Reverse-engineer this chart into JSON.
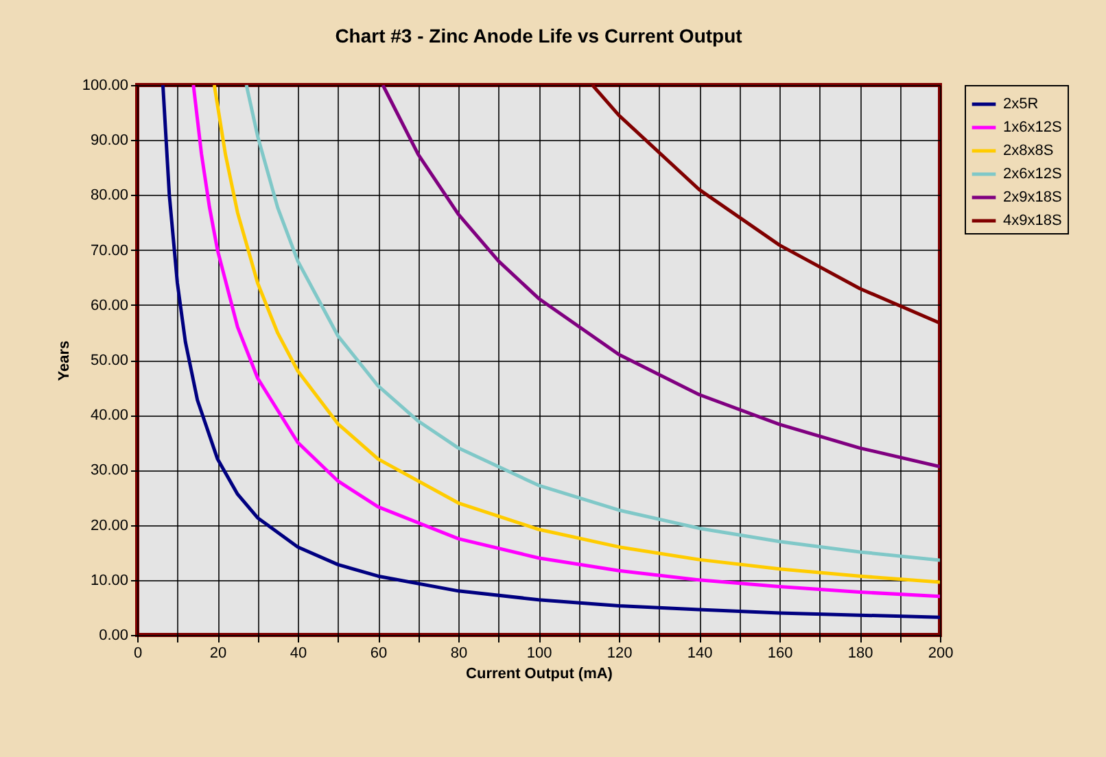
{
  "chart_data": {
    "type": "line",
    "title": "Chart #3 - Zinc Anode Life vs Current Output",
    "xlabel": "Current Output (mA)",
    "ylabel": "Years",
    "xlim": [
      0,
      200
    ],
    "ylim": [
      0,
      100
    ],
    "xticks": [
      0,
      {
        "value": 10,
        "label": null
      },
      20,
      {
        "value": 30,
        "label": null
      },
      40,
      {
        "value": 50,
        "label": null
      },
      60,
      {
        "value": 70,
        "label": null
      },
      80,
      {
        "value": 90,
        "label": null
      },
      100,
      {
        "value": 110,
        "label": null
      },
      120,
      {
        "value": 130,
        "label": null
      },
      140,
      {
        "value": 150,
        "label": null
      },
      160,
      {
        "value": 170,
        "label": null
      },
      180,
      {
        "value": 190,
        "label": null
      },
      200
    ],
    "yticks": [
      {
        "value": 0,
        "label": "0.00"
      },
      {
        "value": 10,
        "label": "10.00"
      },
      {
        "value": 20,
        "label": "20.00"
      },
      {
        "value": 30,
        "label": "30.00"
      },
      {
        "value": 40,
        "label": "40.00"
      },
      {
        "value": 50,
        "label": "50.00"
      },
      {
        "value": 60,
        "label": "60.00"
      },
      {
        "value": 70,
        "label": "70.00"
      },
      {
        "value": 80,
        "label": "80.00"
      },
      {
        "value": 90,
        "label": "90.00"
      },
      {
        "value": 100,
        "label": "100.00"
      }
    ],
    "grid": true,
    "legend": "right",
    "marker": "none",
    "line_style": "solid",
    "series": [
      {
        "name": "2x5R",
        "color": "#000080",
        "x": [
          6.4,
          8,
          10,
          12,
          15,
          20,
          25,
          30,
          40,
          50,
          60,
          80,
          100,
          120,
          140,
          160,
          180,
          200
        ],
        "values": [
          100,
          80,
          64,
          53.3,
          42.7,
          32,
          25.6,
          21.3,
          16,
          12.8,
          10.7,
          8,
          6.4,
          5.3,
          4.6,
          4,
          3.6,
          3.2
        ]
      },
      {
        "name": "1x6x12S",
        "color": "#ff00ff",
        "x": [
          14,
          16,
          18,
          20,
          25,
          30,
          40,
          50,
          60,
          80,
          100,
          120,
          140,
          160,
          180,
          200
        ],
        "values": [
          100,
          87.5,
          77.8,
          70,
          56,
          46.7,
          35,
          28,
          23.3,
          17.5,
          14,
          11.7,
          10,
          8.8,
          7.8,
          7
        ]
      },
      {
        "name": "2x8x8S",
        "color": "#ffcc00",
        "x": [
          19.2,
          22,
          25,
          30,
          35,
          40,
          50,
          60,
          80,
          100,
          120,
          140,
          160,
          180,
          200
        ],
        "values": [
          100,
          87.3,
          76.8,
          64,
          54.9,
          48,
          38.4,
          32,
          24,
          19.2,
          16,
          13.7,
          12,
          10.7,
          9.6
        ]
      },
      {
        "name": "2x6x12S",
        "color": "#80c8c8",
        "x": [
          27.2,
          30,
          35,
          40,
          50,
          60,
          70,
          80,
          100,
          120,
          140,
          160,
          180,
          200
        ],
        "values": [
          100,
          90.7,
          77.7,
          68,
          54.4,
          45.3,
          38.9,
          34,
          27.2,
          22.7,
          19.4,
          17,
          15.1,
          13.6
        ]
      },
      {
        "name": "2x9x18S",
        "color": "#800080",
        "x": [
          61.2,
          70,
          80,
          90,
          100,
          120,
          140,
          160,
          180,
          200
        ],
        "values": [
          100,
          87.4,
          76.5,
          68,
          61.2,
          51,
          43.7,
          38.3,
          34,
          30.6
        ]
      },
      {
        "name": "4x9x18S",
        "color": "#800000",
        "x": [
          113.4,
          120,
          140,
          160,
          180,
          200
        ],
        "values": [
          100,
          94.5,
          81,
          70.9,
          63,
          56.7
        ]
      }
    ]
  }
}
